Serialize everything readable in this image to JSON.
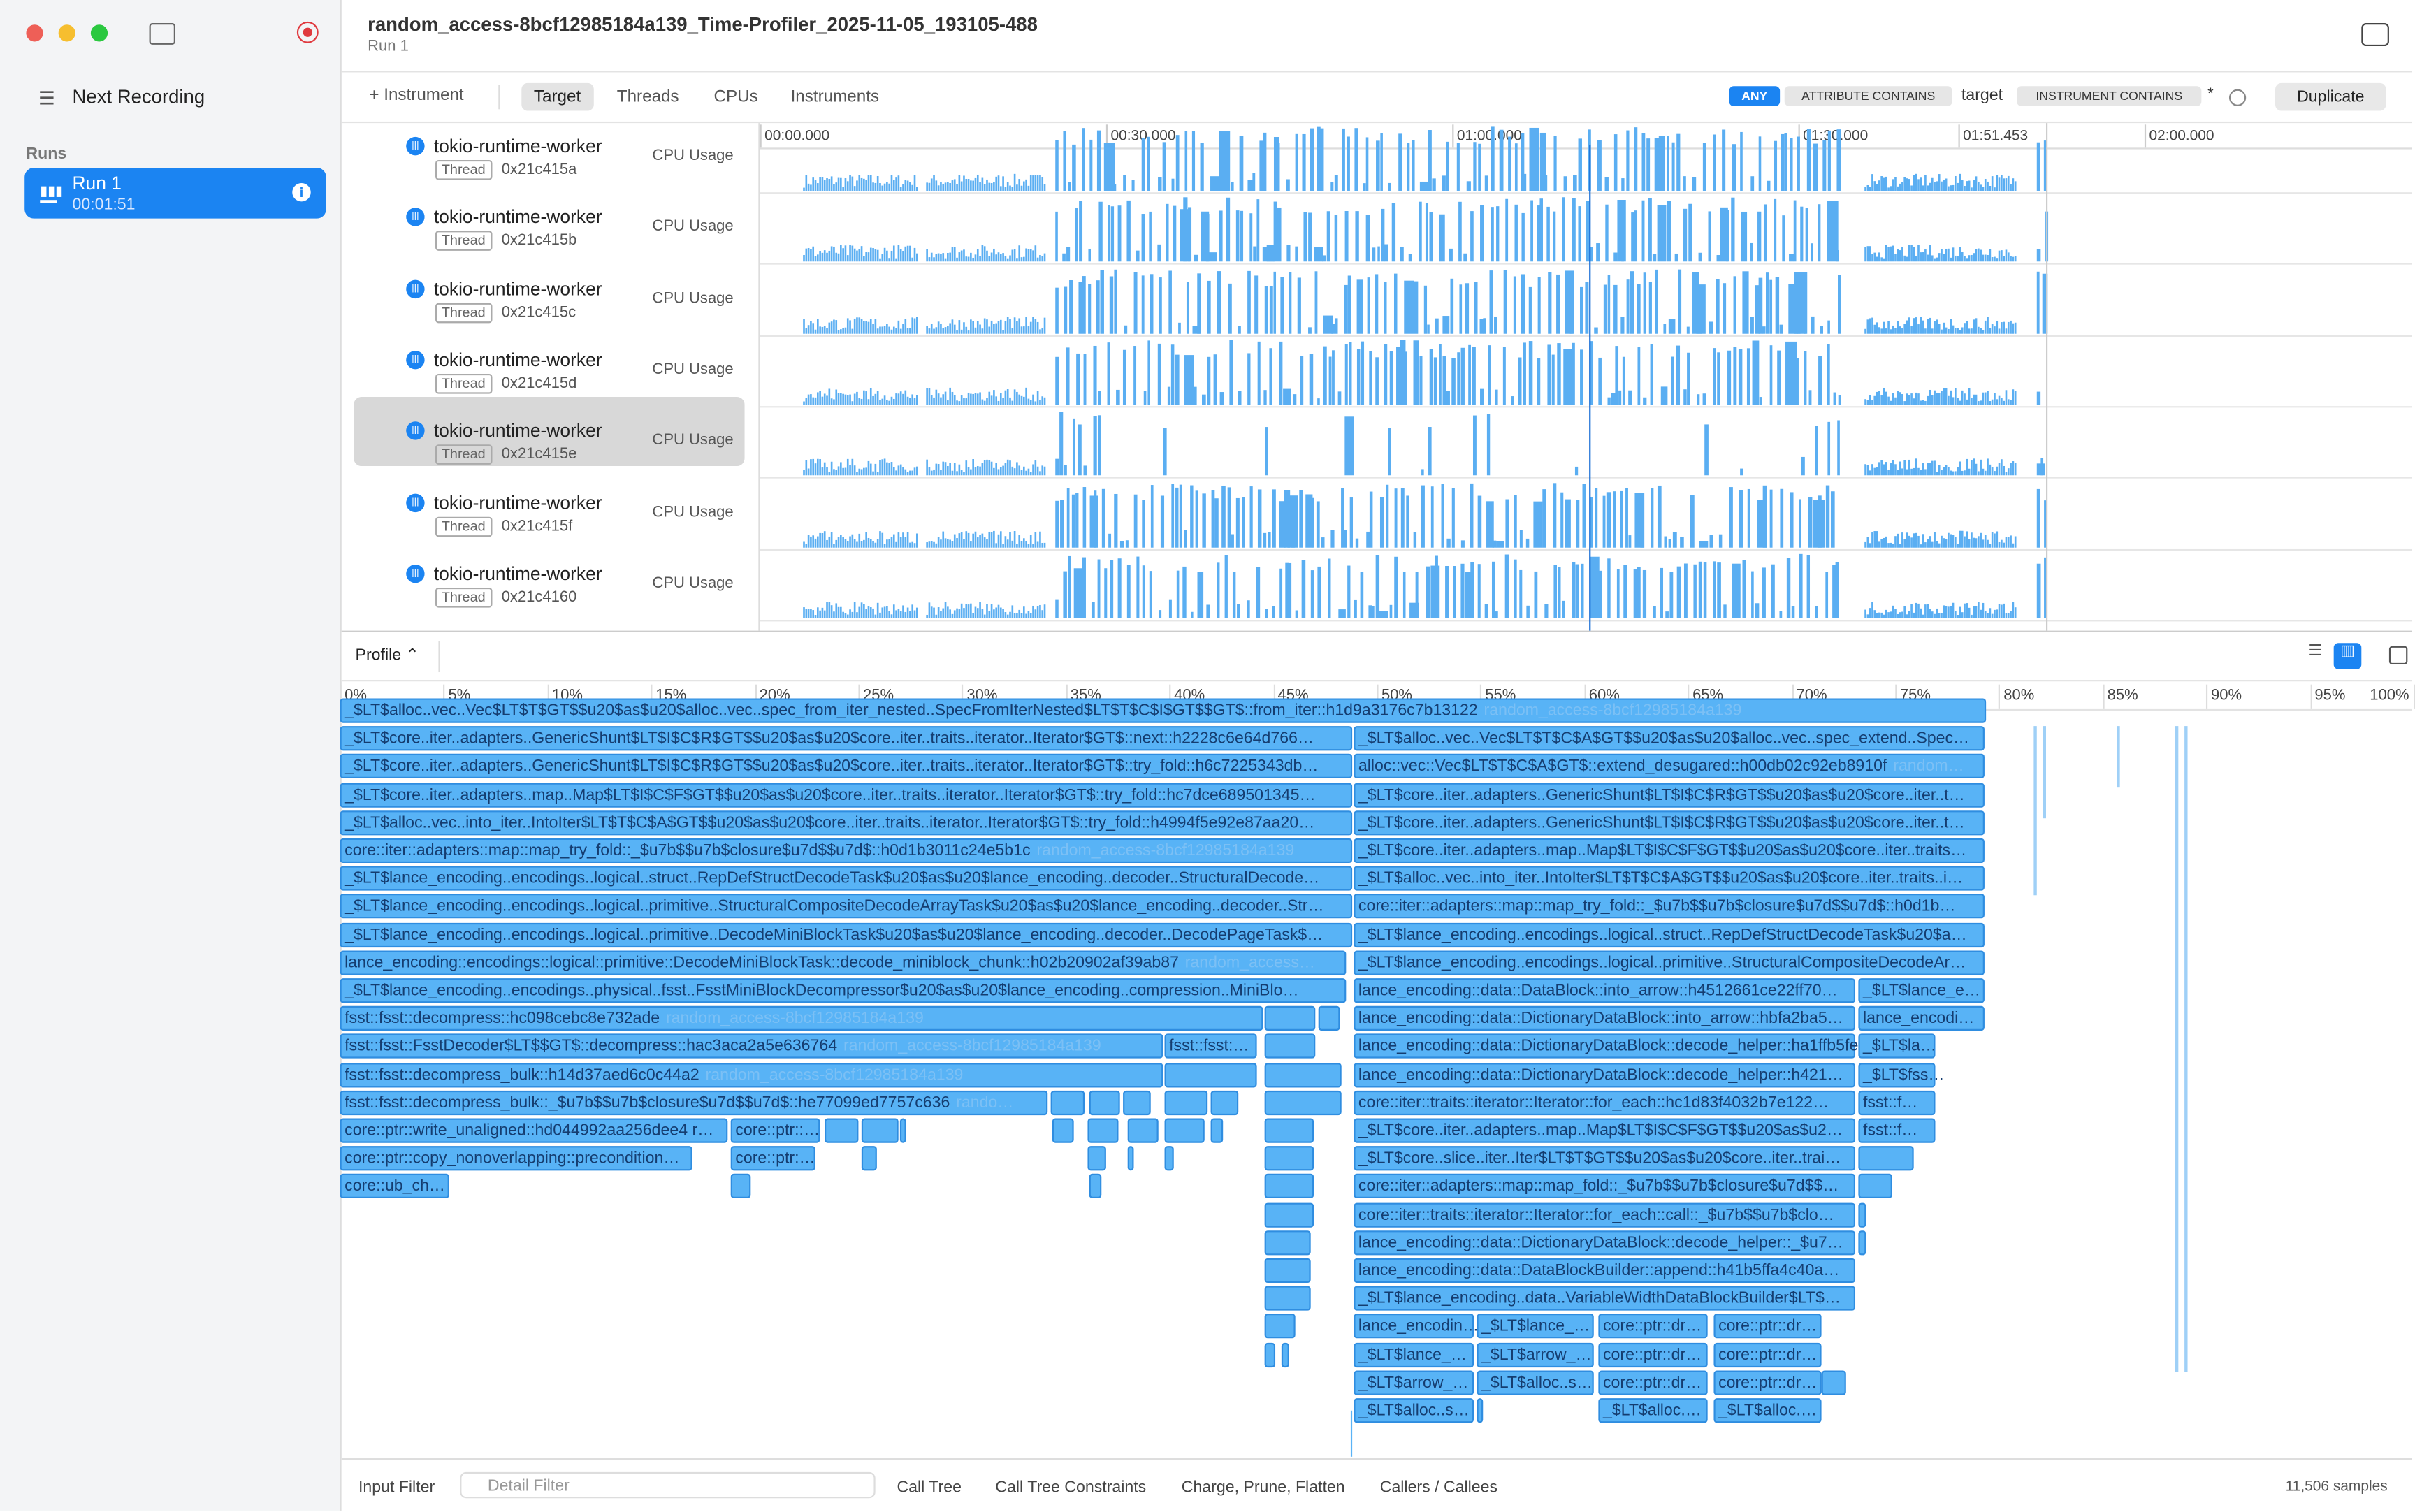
{
  "window": {
    "title": "random_access-8bcf12985184a139_Time-Profiler_2025-11-05_193105-488",
    "subtitle": "Run 1"
  },
  "sidebar": {
    "next_recording": "Next Recording",
    "runs_header": "Runs",
    "runs": [
      {
        "name": "Run 1",
        "duration": "00:01:51"
      }
    ]
  },
  "toolbar": {
    "add_instrument": "Instrument",
    "tabs": [
      "Target",
      "Threads",
      "CPUs",
      "Instruments"
    ],
    "filter": {
      "mode": "ANY",
      "tokens": [
        "ATTRIBUTE CONTAINS",
        "target",
        "INSTRUMENT CONTAINS",
        "*"
      ]
    },
    "duplicate": "Duplicate"
  },
  "timeline": {
    "ticks": [
      "00:00.000",
      "00:30.000",
      "01:00.000",
      "01:30.000",
      "01:51.453",
      "02:00.000"
    ],
    "rows": [
      {
        "name": "tokio-runtime-worker",
        "kind": "Thread",
        "id": "0x21c415a",
        "track": "CPU Usage"
      },
      {
        "name": "tokio-runtime-worker",
        "kind": "Thread",
        "id": "0x21c415b",
        "track": "CPU Usage"
      },
      {
        "name": "tokio-runtime-worker",
        "kind": "Thread",
        "id": "0x21c415c",
        "track": "CPU Usage"
      },
      {
        "name": "tokio-runtime-worker",
        "kind": "Thread",
        "id": "0x21c415d",
        "track": "CPU Usage"
      },
      {
        "name": "tokio-runtime-worker",
        "kind": "Thread",
        "id": "0x21c415e",
        "track": "CPU Usage"
      },
      {
        "name": "tokio-runtime-worker",
        "kind": "Thread",
        "id": "0x21c415f",
        "track": "CPU Usage"
      },
      {
        "name": "tokio-runtime-worker",
        "kind": "Thread",
        "id": "0x21c4160",
        "track": "CPU Usage"
      }
    ]
  },
  "profile": {
    "selector": "Profile",
    "percent_ticks": [
      "0%",
      "5%",
      "10%",
      "15%",
      "20%",
      "25%",
      "30%",
      "35%",
      "40%",
      "45%",
      "50%",
      "55%",
      "60%",
      "65%",
      "70%",
      "75%",
      "80%",
      "85%",
      "90%",
      "95%",
      "100%"
    ],
    "frames": [
      {
        "symbol": "_$LT$alloc..vec..Vec$LT$T$GT$$u20$as$u20$alloc..vec..spec_from_iter_nested..SpecFromIterNested$LT$T$C$I$GT$$GT$::from_iter::h1d9a3176c7b13122",
        "library": "random_access-8bcf12985184a139"
      },
      {
        "symbol": "_$LT$core..iter..adapters..GenericShunt$LT$I$C$R$GT$$u20$as$u20$core..iter..traits..iterator..Iterator$GT$::next::h2228c6e64d766…"
      },
      {
        "symbol": "_$LT$alloc..vec..Vec$LT$T$C$A$GT$$u20$as$u20$alloc..vec..spec_extend..Spec…"
      },
      {
        "symbol": "_$LT$core..iter..adapters..GenericShunt$LT$I$C$R$GT$$u20$as$u20$core..iter..traits..iterator..Iterator$GT$::try_fold::h6c7225343db…"
      },
      {
        "symbol": "alloc::vec::Vec$LT$T$C$A$GT$::extend_desugared::h00db02c92eb8910f",
        "library": "random…"
      },
      {
        "symbol": "_$LT$core..iter..adapters..map..Map$LT$I$C$F$GT$$u20$as$u20$core..iter..traits..iterator..Iterator$GT$::try_fold::hc7dce689501345…"
      },
      {
        "symbol": "_$LT$core..iter..adapters..GenericShunt$LT$I$C$R$GT$$u20$as$u20$core..iter..t…"
      },
      {
        "symbol": "_$LT$alloc..vec..into_iter..IntoIter$LT$T$C$A$GT$$u20$as$u20$core..iter..traits..iterator..Iterator$GT$::try_fold::h4994f5e92e87aa20…"
      },
      {
        "symbol": "_$LT$core..iter..adapters..GenericShunt$LT$I$C$R$GT$$u20$as$u20$core..iter..t…"
      },
      {
        "symbol": "core::iter::adapters::map::map_try_fold::_$u7b$$u7b$closure$u7d$$u7d$::h0d1b3011c24e5b1c",
        "library": "random_access-8bcf12985184a139"
      },
      {
        "symbol": "_$LT$core..iter..adapters..map..Map$LT$I$C$F$GT$$u20$as$u20$core..iter..traits…"
      },
      {
        "symbol": "_$LT$lance_encoding..encodings..logical..struct..RepDefStructDecodeTask$u20$as$u20$lance_encoding..decoder..StructuralDecode…"
      },
      {
        "symbol": "_$LT$alloc..vec..into_iter..IntoIter$LT$T$C$A$GT$$u20$as$u20$core..iter..traits..i…"
      },
      {
        "symbol": "_$LT$lance_encoding..encodings..logical..primitive..StructuralCompositeDecodeArrayTask$u20$as$u20$lance_encoding..decoder..Str…"
      },
      {
        "symbol": "core::iter::adapters::map::map_try_fold::_$u7b$$u7b$closure$u7d$$u7d$::h0d1b…"
      },
      {
        "symbol": "_$LT$lance_encoding..encodings..logical..primitive..DecodeMiniBlockTask$u20$as$u20$lance_encoding..decoder..DecodePageTask$…"
      },
      {
        "symbol": "_$LT$lance_encoding..encodings..logical..struct..RepDefStructDecodeTask$u20$a…"
      },
      {
        "symbol": "lance_encoding::encodings::logical::primitive::DecodeMiniBlockTask::decode_miniblock_chunk::h02b20902af39ab87",
        "library": "random_access…"
      },
      {
        "symbol": "_$LT$lance_encoding..encodings..logical..primitive..StructuralCompositeDecodeAr…"
      },
      {
        "symbol": "_$LT$lance_encoding..encodings..physical..fsst..FsstMiniBlockDecompressor$u20$as$u20$lance_encoding..compression..MiniBlo…"
      },
      {
        "symbol": "lance_encoding::data::DataBlock::into_arrow::h4512661ce22ff70…"
      },
      {
        "symbol": "_$LT$lance_e…"
      },
      {
        "symbol": "fsst::fsst::decompress::hc098cebc8e732ade",
        "library": "random_access-8bcf12985184a139"
      },
      {
        "symbol": "lance_encoding::data::DictionaryDataBlock::into_arrow::hbfa2ba5…"
      },
      {
        "symbol": "lance_encodi…"
      },
      {
        "symbol": "fsst::fsst::FsstDecoder$LT$$GT$::decompress::hac3aca2a5e636764",
        "library": "random_access-8bcf12985184a139"
      },
      {
        "symbol": "fsst::fsst:…"
      },
      {
        "symbol": "lance_encoding::data::DictionaryDataBlock::decode_helper::ha1ffb5fefa9…"
      },
      {
        "symbol": "_$LT$la…"
      },
      {
        "symbol": "fsst::fsst::decompress_bulk::h14d37aed6c0c44a2",
        "library": "random_access-8bcf12985184a139"
      },
      {
        "symbol": "lance_encoding::data::DictionaryDataBlock::decode_helper::h421…"
      },
      {
        "symbol": "_$LT$fss…"
      },
      {
        "symbol": "fsst::fsst::decompress_bulk::_$u7b$$u7b$closure$u7d$$u7d$::he77099ed7757c636",
        "library": "rando…"
      },
      {
        "symbol": "core::iter::traits::iterator::Iterator::for_each::hc1d83f4032b7e122…"
      },
      {
        "symbol": "fsst::f…"
      },
      {
        "symbol": "core::ptr::write_unaligned::hd044992aa256dee4 r…"
      },
      {
        "symbol": "core::ptr::…"
      },
      {
        "symbol": "_$LT$core..iter..adapters..map..Map$LT$I$C$F$GT$$u20$as$u2…"
      },
      {
        "symbol": "fsst::f…"
      },
      {
        "symbol": "core::ptr::copy_nonoverlapping::precondition…"
      },
      {
        "symbol": "core::ptr:…"
      },
      {
        "symbol": "_$LT$core..slice..iter..Iter$LT$T$GT$$u20$as$u20$core..iter..trai…"
      },
      {
        "symbol": "core::ub_ch…"
      },
      {
        "symbol": "core::iter::adapters::map::map_fold::_$u7b$$u7b$closure$u7d$$…"
      },
      {
        "symbol": "core::iter::traits::iterator::Iterator::for_each::call::_$u7b$$u7b$clo…"
      },
      {
        "symbol": "lance_encoding::data::DictionaryDataBlock::decode_helper::_$u7…"
      },
      {
        "symbol": "lance_encoding::data::DataBlockBuilder::append::h41b5ffa4c40a…"
      },
      {
        "symbol": "_$LT$lance_encoding..data..VariableWidthDataBlockBuilder$LT$…"
      },
      {
        "symbol": "lance_encodin…"
      },
      {
        "symbol": "_$LT$lance_…"
      },
      {
        "symbol": "core::ptr::dr…"
      },
      {
        "symbol": "core::ptr::dr…"
      },
      {
        "symbol": "_$LT$lance_…"
      },
      {
        "symbol": "_$LT$arrow_…"
      },
      {
        "symbol": "core::ptr::dr…"
      },
      {
        "symbol": "core::ptr::dr…"
      },
      {
        "symbol": "_$LT$arrow_…"
      },
      {
        "symbol": "_$LT$alloc..s…"
      },
      {
        "symbol": "core::ptr::dr…"
      },
      {
        "symbol": "core::ptr::dr…"
      },
      {
        "symbol": "_$LT$alloc..s…"
      },
      {
        "symbol": "_$LT$alloc.…"
      },
      {
        "symbol": "_$LT$alloc.…"
      }
    ]
  },
  "bottom": {
    "input_filter": "Input Filter",
    "detail_filter": "Detail Filter",
    "buttons": [
      "Call Tree",
      "Call Tree Constraints",
      "Charge, Prune, Flatten",
      "Callers / Callees"
    ],
    "samples": "11,506 samples"
  }
}
